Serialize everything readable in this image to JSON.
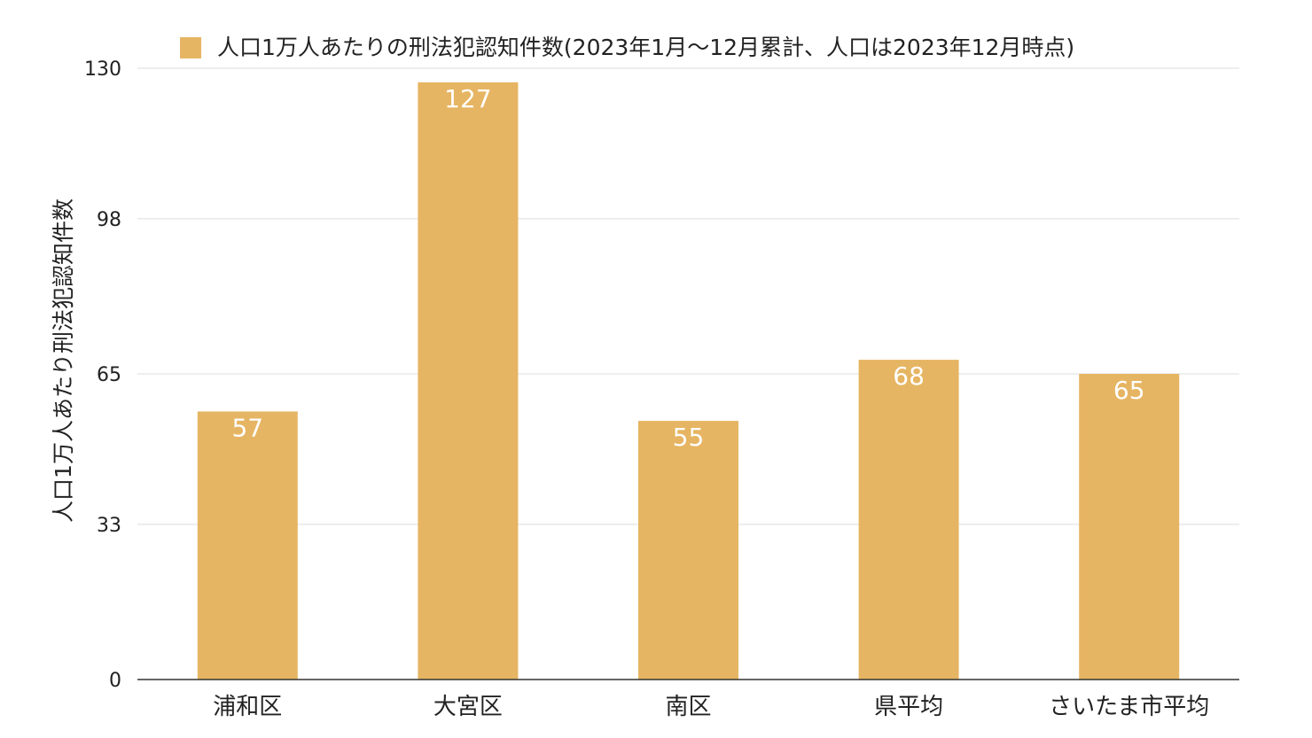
{
  "chart_data": {
    "type": "bar",
    "categories": [
      "浦和区",
      "大宮区",
      "南区",
      "県平均",
      "さいたま市平均"
    ],
    "series": [
      {
        "name": "人口1万人あたりの刑法犯認知件数(2023年1月〜12月累計、人口は2023年12月時点)",
        "values": [
          57,
          127,
          55,
          68,
          65
        ]
      }
    ],
    "data_labels": [
      "57",
      "127",
      "55",
      "68",
      "65"
    ],
    "ylabel": "人口1万人あたり刑法犯認知件数",
    "xlabel": "",
    "ylim": [
      0,
      130
    ],
    "yticks": [
      0,
      33,
      65,
      98,
      130
    ],
    "grid": true,
    "legend_position": "top",
    "bar_color": "#E6B563"
  }
}
